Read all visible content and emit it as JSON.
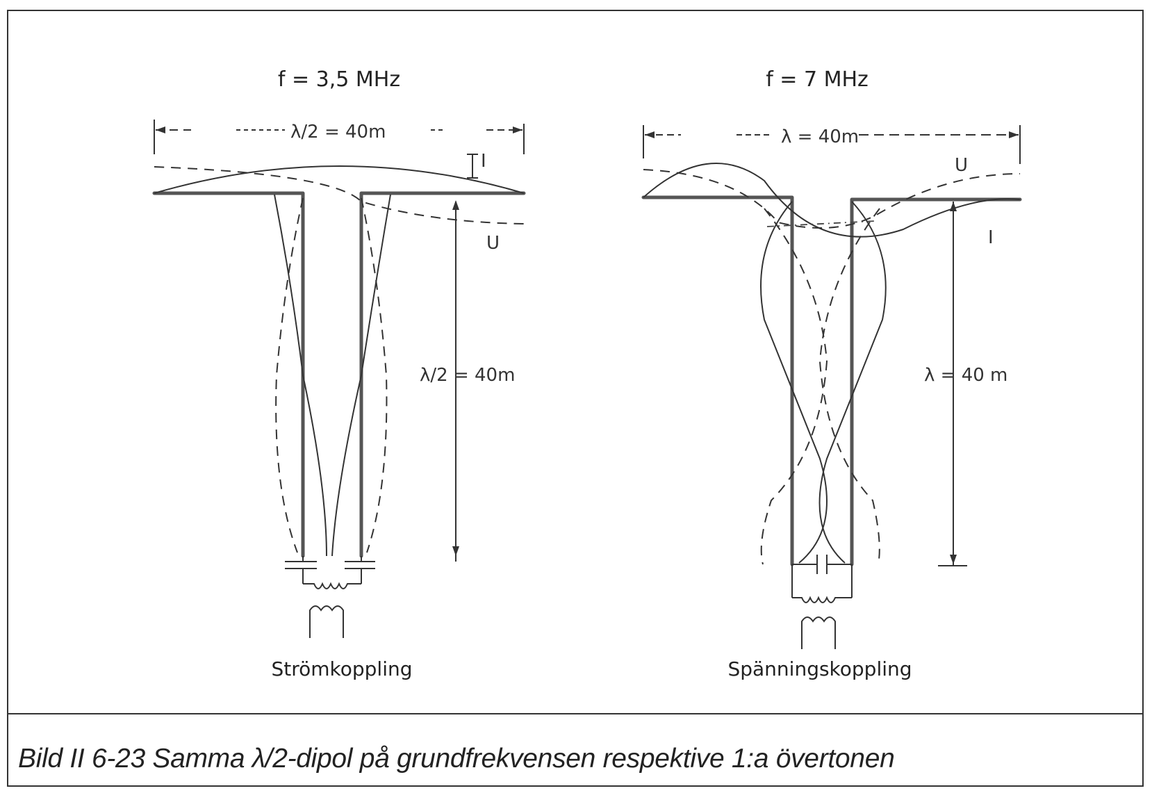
{
  "left_panel": {
    "title": "f = 3,5 MHz",
    "width_label": "λ/2 = 40m",
    "height_label": "λ/2 = 40m",
    "current_curve_label": "I",
    "voltage_curve_label": "U",
    "caption": "Strömkoppling"
  },
  "right_panel": {
    "title": "f = 7 MHz",
    "width_label": "λ = 40m",
    "height_label": "λ = 40 m",
    "current_curve_label": "I",
    "voltage_curve_label": "U",
    "caption": "Spänningskoppling"
  },
  "figure_caption": "Bild II 6-23  Samma λ/2-dipol på grundfrekvensen respektive 1:a övertonen"
}
